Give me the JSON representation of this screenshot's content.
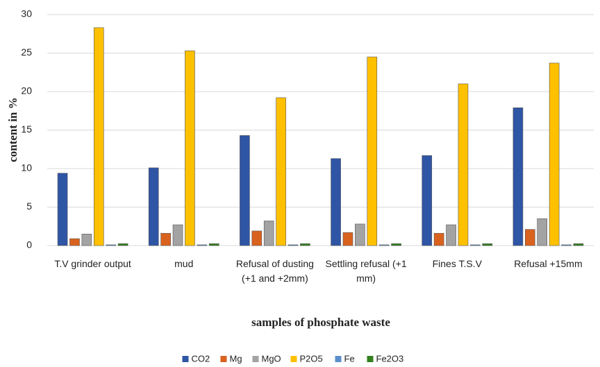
{
  "chart_data": {
    "type": "bar",
    "y_label": "content in %",
    "x_label": "samples of phosphate waste",
    "categories": [
      "T.V grinder output",
      "mud",
      "Refusal of dusting (+1 and +2mm)",
      "Settling refusal (+1 mm)",
      "Fines T.S.V",
      "Refusal +15mm"
    ],
    "series": [
      {
        "name": "CO2",
        "color": "#2f55a5",
        "values": [
          9.4,
          10.1,
          14.3,
          11.3,
          11.7,
          17.9
        ]
      },
      {
        "name": "Mg",
        "color": "#d9621f",
        "values": [
          0.9,
          1.6,
          1.9,
          1.7,
          1.6,
          2.1
        ]
      },
      {
        "name": "MgO",
        "color": "#a3a3a3",
        "values": [
          1.5,
          2.7,
          3.2,
          2.8,
          2.7,
          3.5
        ]
      },
      {
        "name": "P2O5",
        "color": "#ffc000",
        "values": [
          28.3,
          25.3,
          19.2,
          24.5,
          21.0,
          23.7
        ]
      },
      {
        "name": "Fe",
        "color": "#5b8fcb",
        "values": [
          0.1,
          0.1,
          0.1,
          0.1,
          0.1,
          0.1
        ]
      },
      {
        "name": "Fe2O3",
        "color": "#33801f",
        "values": [
          0.25,
          0.25,
          0.25,
          0.25,
          0.25,
          0.25
        ]
      }
    ],
    "ylim": [
      0,
      30
    ],
    "yticks": [
      0,
      5,
      10,
      15,
      20,
      25,
      30
    ],
    "grid": true,
    "legend": "bottom"
  }
}
